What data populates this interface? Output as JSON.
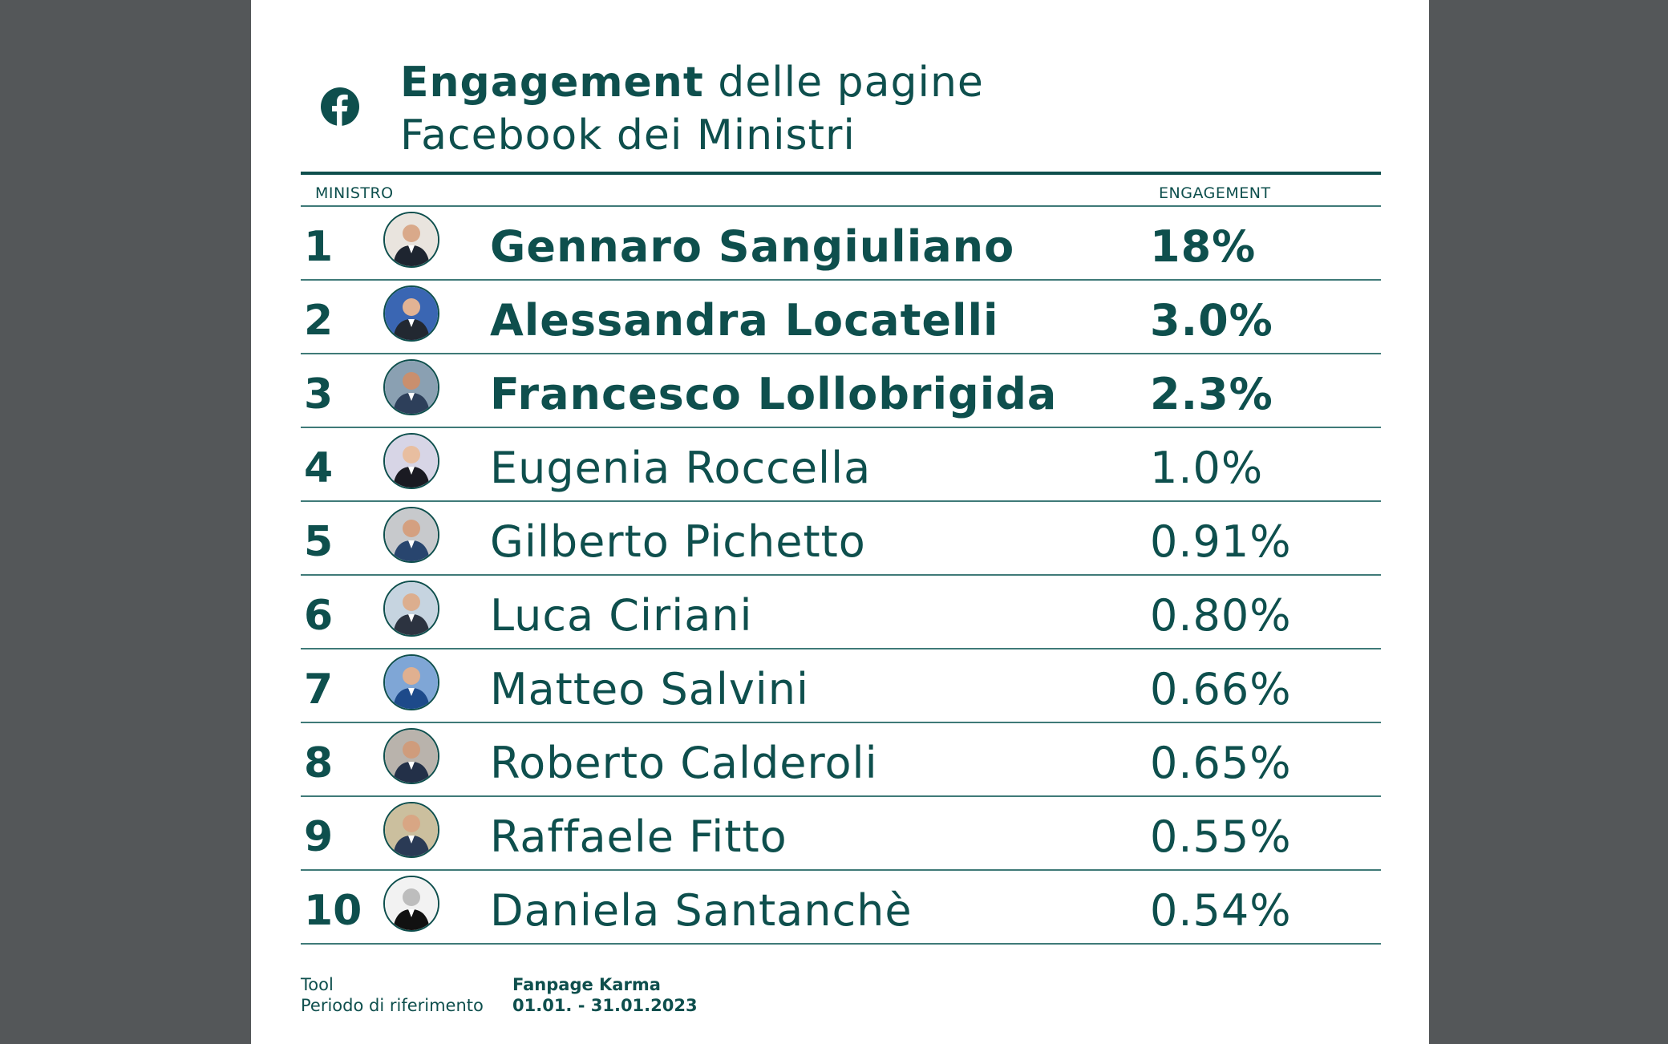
{
  "title": {
    "bold": "Engagement",
    "rest_line1": " delle pagine",
    "line2": "Facebook dei Ministri"
  },
  "icon": "facebook-icon",
  "colors": {
    "primary": "#0e4f4d",
    "background_outer": "#545759",
    "sheet": "#ffffff"
  },
  "table": {
    "headers": {
      "ministro": "MINISTRO",
      "engagement": "ENGAGEMENT"
    },
    "rows": [
      {
        "rank": "1",
        "name": "Gennaro Sangiuliano",
        "engagement": "18%"
      },
      {
        "rank": "2",
        "name": "Alessandra Locatelli",
        "engagement": "3.0%"
      },
      {
        "rank": "3",
        "name": "Francesco Lollobrigida",
        "engagement": "2.3%"
      },
      {
        "rank": "4",
        "name": "Eugenia Roccella",
        "engagement": "1.0%"
      },
      {
        "rank": "5",
        "name": "Gilberto Pichetto",
        "engagement": "0.91%"
      },
      {
        "rank": "6",
        "name": "Luca Ciriani",
        "engagement": "0.80%"
      },
      {
        "rank": "7",
        "name": "Matteo Salvini",
        "engagement": "0.66%"
      },
      {
        "rank": "8",
        "name": "Roberto Calderoli",
        "engagement": "0.65%"
      },
      {
        "rank": "9",
        "name": "Raffaele Fitto",
        "engagement": "0.55%"
      },
      {
        "rank": "10",
        "name": "Daniela Santanchè",
        "engagement": "0.54%"
      }
    ]
  },
  "footer": {
    "tool_label": "Tool",
    "period_label": "Periodo di riferimento",
    "tool_value": "Fanpage Karma",
    "period_value": "01.01. - 31.01.2023"
  }
}
